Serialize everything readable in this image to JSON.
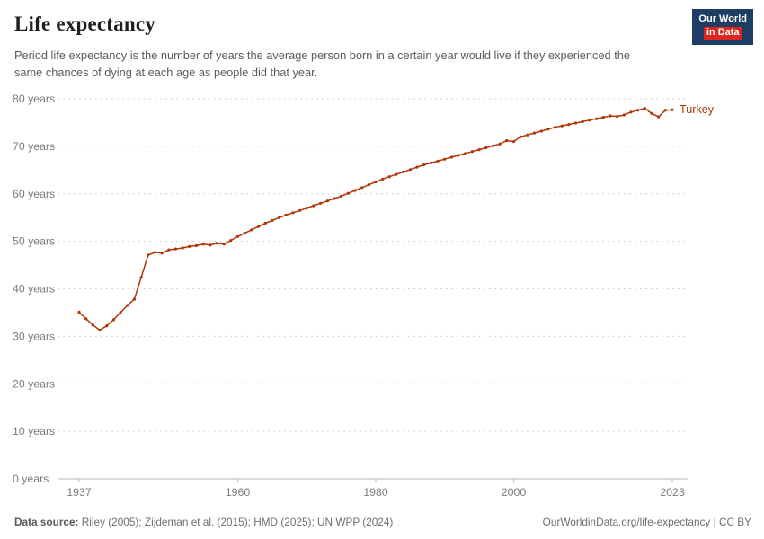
{
  "header": {
    "title": "Life expectancy",
    "logo": {
      "line1": "Our World",
      "line2": "in Data"
    }
  },
  "subtitle": "Period life expectancy is the number of years the average person born in a certain year would live if they experienced the same chances of dying at each age as people did that year.",
  "footer": {
    "source_label": "Data source:",
    "source_text": " Riley (2005); Zijdeman et al. (2015); HMD (2025); UN WPP (2024)",
    "right_text": "OurWorldinData.org/life-expectancy | CC BY"
  },
  "colors": {
    "line": "#B13507",
    "grid": "#d6d6d6",
    "baseline": "#b5b5b5",
    "axis_text": "#7a7a7a",
    "logo_bg": "#1d3d63",
    "logo_accent": "#dc2821"
  },
  "chart_data": {
    "type": "line",
    "title": "Life expectancy",
    "grid": "dashed horizontal",
    "legend_position": "end-of-line label",
    "xlim": [
      1937,
      2023
    ],
    "ylim": [
      0,
      80
    ],
    "yticks": [
      0,
      10,
      20,
      30,
      40,
      50,
      60,
      70,
      80
    ],
    "ytick_labels": [
      "0 years",
      "10 years",
      "20 years",
      "30 years",
      "40 years",
      "50 years",
      "60 years",
      "70 years",
      "80 years"
    ],
    "xticks": [
      1937,
      1960,
      1980,
      2000,
      2023
    ],
    "xtick_labels": [
      "1937",
      "1960",
      "1980",
      "2000",
      "2023"
    ],
    "series": [
      {
        "name": "Turkey",
        "x": [
          1937,
          1938,
          1939,
          1940,
          1941,
          1942,
          1943,
          1944,
          1945,
          1946,
          1947,
          1948,
          1949,
          1950,
          1951,
          1952,
          1953,
          1954,
          1955,
          1956,
          1957,
          1958,
          1959,
          1960,
          1961,
          1962,
          1963,
          1964,
          1965,
          1966,
          1967,
          1968,
          1969,
          1970,
          1971,
          1972,
          1973,
          1974,
          1975,
          1976,
          1977,
          1978,
          1979,
          1980,
          1981,
          1982,
          1983,
          1984,
          1985,
          1986,
          1987,
          1988,
          1989,
          1990,
          1991,
          1992,
          1993,
          1994,
          1995,
          1996,
          1997,
          1998,
          1999,
          2000,
          2001,
          2002,
          2003,
          2004,
          2005,
          2006,
          2007,
          2008,
          2009,
          2010,
          2011,
          2012,
          2013,
          2014,
          2015,
          2016,
          2017,
          2018,
          2019,
          2020,
          2021,
          2022,
          2023
        ],
        "values": [
          35.1,
          33.7,
          32.4,
          31.3,
          32.2,
          33.5,
          35.0,
          36.5,
          37.8,
          42.4,
          47.1,
          47.7,
          47.5,
          48.2,
          48.4,
          48.6,
          48.9,
          49.1,
          49.4,
          49.2,
          49.6,
          49.4,
          50.2,
          51.0,
          51.7,
          52.4,
          53.1,
          53.8,
          54.4,
          55.0,
          55.5,
          56.0,
          56.5,
          57.0,
          57.5,
          58.0,
          58.5,
          59.0,
          59.5,
          60.1,
          60.7,
          61.3,
          61.9,
          62.5,
          63.1,
          63.6,
          64.1,
          64.6,
          65.1,
          65.6,
          66.1,
          66.5,
          66.9,
          67.3,
          67.7,
          68.1,
          68.5,
          68.9,
          69.3,
          69.7,
          70.1,
          70.5,
          71.2,
          71.0,
          72.0,
          72.4,
          72.8,
          73.2,
          73.6,
          74.0,
          74.3,
          74.6,
          74.9,
          75.2,
          75.5,
          75.8,
          76.1,
          76.4,
          76.3,
          76.6,
          77.2,
          77.6,
          78.0,
          76.9,
          76.2,
          77.6,
          77.7
        ]
      }
    ]
  }
}
